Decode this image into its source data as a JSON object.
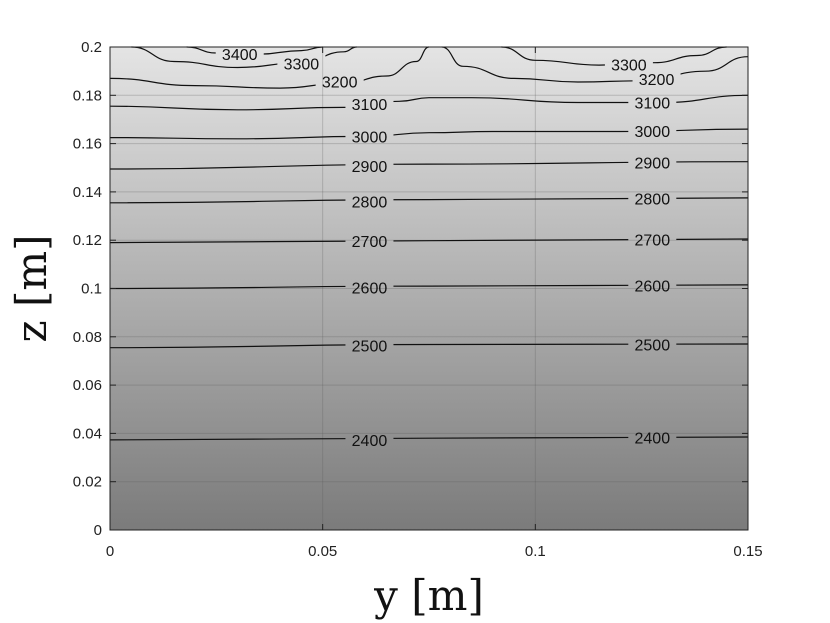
{
  "chart_data": {
    "type": "contour",
    "xlabel": "y  [m]",
    "ylabel": "z  [m]",
    "xlim": [
      0,
      0.15
    ],
    "ylim": [
      0,
      0.2
    ],
    "xticks": [
      {
        "value": 0,
        "label": "0"
      },
      {
        "value": 0.05,
        "label": "0.05"
      },
      {
        "value": 0.1,
        "label": "0.1"
      },
      {
        "value": 0.15,
        "label": "0.15"
      }
    ],
    "yticks": [
      {
        "value": 0,
        "label": "0"
      },
      {
        "value": 0.02,
        "label": "0.02"
      },
      {
        "value": 0.04,
        "label": "0.04"
      },
      {
        "value": 0.06,
        "label": "0.06"
      },
      {
        "value": 0.08,
        "label": "0.08"
      },
      {
        "value": 0.1,
        "label": "0.1"
      },
      {
        "value": 0.12,
        "label": "0.12"
      },
      {
        "value": 0.14,
        "label": "0.14"
      },
      {
        "value": 0.16,
        "label": "0.16"
      },
      {
        "value": 0.18,
        "label": "0.18"
      },
      {
        "value": 0.2,
        "label": "0.2"
      }
    ],
    "grid": true,
    "colormap": "gray",
    "fill_colors": {
      "bottom": "#7b7b7b",
      "top": "#e4e4e4"
    },
    "contours": [
      {
        "level": 2400,
        "points": [
          [
            0,
            0.0373
          ],
          [
            0.075,
            0.038
          ],
          [
            0.15,
            0.0385
          ]
        ],
        "labels": [
          {
            "text": "2400",
            "x": 0.061,
            "y": 0.0373
          },
          {
            "text": "2400",
            "x": 0.1275,
            "y": 0.0383
          }
        ]
      },
      {
        "level": 2500,
        "points": [
          [
            0,
            0.0755
          ],
          [
            0.075,
            0.0768
          ],
          [
            0.15,
            0.077
          ]
        ],
        "labels": [
          {
            "text": "2500",
            "x": 0.061,
            "y": 0.0763
          },
          {
            "text": "2500",
            "x": 0.1275,
            "y": 0.0769
          }
        ]
      },
      {
        "level": 2600,
        "points": [
          [
            0,
            0.1
          ],
          [
            0.075,
            0.101
          ],
          [
            0.15,
            0.1015
          ]
        ],
        "labels": [
          {
            "text": "2600",
            "x": 0.061,
            "y": 0.1004
          },
          {
            "text": "2600",
            "x": 0.1275,
            "y": 0.1013
          }
        ]
      },
      {
        "level": 2700,
        "points": [
          [
            0,
            0.119
          ],
          [
            0.075,
            0.1198
          ],
          [
            0.15,
            0.1205
          ]
        ],
        "labels": [
          {
            "text": "2700",
            "x": 0.061,
            "y": 0.1196
          },
          {
            "text": "2700",
            "x": 0.1275,
            "y": 0.1202
          }
        ]
      },
      {
        "level": 2800,
        "points": [
          [
            0,
            0.1355
          ],
          [
            0.075,
            0.1368
          ],
          [
            0.15,
            0.1375
          ]
        ],
        "labels": [
          {
            "text": "2800",
            "x": 0.061,
            "y": 0.1361
          },
          {
            "text": "2800",
            "x": 0.1275,
            "y": 0.1372
          }
        ]
      },
      {
        "level": 2900,
        "points": [
          [
            0,
            0.1495
          ],
          [
            0.075,
            0.1515
          ],
          [
            0.15,
            0.1525
          ]
        ],
        "labels": [
          {
            "text": "2900",
            "x": 0.061,
            "y": 0.1508
          },
          {
            "text": "2900",
            "x": 0.1275,
            "y": 0.1522
          }
        ]
      },
      {
        "level": 3000,
        "points": [
          [
            0,
            0.1625
          ],
          [
            0.03,
            0.162
          ],
          [
            0.06,
            0.163
          ],
          [
            0.075,
            0.1645
          ],
          [
            0.09,
            0.165
          ],
          [
            0.12,
            0.165
          ],
          [
            0.15,
            0.166
          ]
        ],
        "labels": [
          {
            "text": "3000",
            "x": 0.061,
            "y": 0.163
          },
          {
            "text": "3000",
            "x": 0.1275,
            "y": 0.1652
          }
        ]
      },
      {
        "level": 3100,
        "points": [
          [
            0,
            0.1755
          ],
          [
            0.03,
            0.174
          ],
          [
            0.055,
            0.175
          ],
          [
            0.068,
            0.1775
          ],
          [
            0.075,
            0.179
          ],
          [
            0.085,
            0.179
          ],
          [
            0.11,
            0.177
          ],
          [
            0.13,
            0.177
          ],
          [
            0.15,
            0.18
          ]
        ],
        "labels": [
          {
            "text": "3100",
            "x": 0.061,
            "y": 0.1765
          },
          {
            "text": "3100",
            "x": 0.1275,
            "y": 0.177
          }
        ]
      },
      {
        "level": 3200,
        "points": [
          [
            0,
            0.187
          ],
          [
            0.02,
            0.184
          ],
          [
            0.04,
            0.183
          ],
          [
            0.055,
            0.185
          ],
          [
            0.065,
            0.188
          ],
          [
            0.072,
            0.194
          ],
          [
            0.075,
            0.2
          ]
        ],
        "labels": [
          {
            "text": "3200",
            "x": 0.054,
            "y": 0.1858
          }
        ]
      },
      {
        "level": 3200,
        "points": [
          [
            0.078,
            0.2
          ],
          [
            0.083,
            0.192
          ],
          [
            0.095,
            0.187
          ],
          [
            0.11,
            0.1855
          ],
          [
            0.125,
            0.186
          ],
          [
            0.14,
            0.19
          ],
          [
            0.15,
            0.196
          ]
        ],
        "labels": [
          {
            "text": "3200",
            "x": 0.1285,
            "y": 0.1868
          }
        ]
      },
      {
        "level": 3300,
        "points": [
          [
            0.005,
            0.2
          ],
          [
            0.015,
            0.194
          ],
          [
            0.03,
            0.1915
          ],
          [
            0.045,
            0.1935
          ],
          [
            0.055,
            0.198
          ],
          [
            0.058,
            0.2
          ]
        ],
        "labels": [
          {
            "text": "3300",
            "x": 0.045,
            "y": 0.1932
          }
        ]
      },
      {
        "level": 3300,
        "points": [
          [
            0.092,
            0.2
          ],
          [
            0.1,
            0.1945
          ],
          [
            0.115,
            0.1925
          ],
          [
            0.128,
            0.1935
          ],
          [
            0.138,
            0.1965
          ],
          [
            0.145,
            0.2
          ]
        ],
        "labels": [
          {
            "text": "3300",
            "x": 0.122,
            "y": 0.1928
          }
        ]
      },
      {
        "level": 3400,
        "points": [
          [
            0.018,
            0.2
          ],
          [
            0.025,
            0.1975
          ],
          [
            0.035,
            0.197
          ],
          [
            0.045,
            0.1985
          ],
          [
            0.05,
            0.2
          ]
        ],
        "labels": [
          {
            "text": "3400",
            "x": 0.0305,
            "y": 0.197
          }
        ]
      }
    ]
  }
}
